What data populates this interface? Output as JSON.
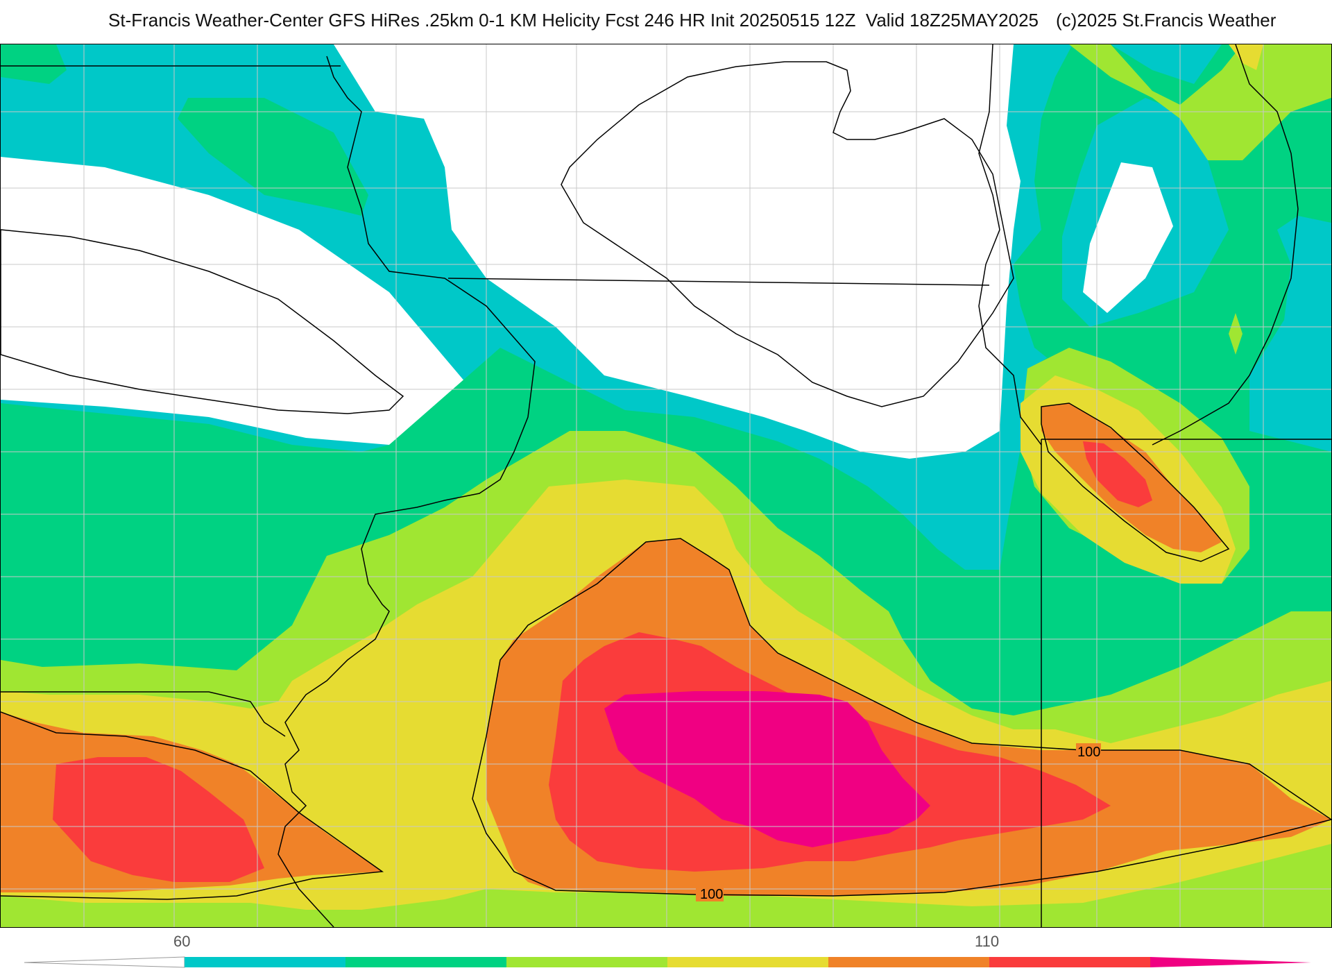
{
  "header": {
    "left_title": "St-Francis Weather-Center GFS HiRes .25km 0-1 KM Helicity Fcst 246 HR Init 20250515 12Z  Valid 18Z25MAY2025",
    "right_title": "(c)2025 St.Francis Weather"
  },
  "map": {
    "contour_labels": [
      "100",
      "100"
    ]
  },
  "legend": {
    "tick_labels": [
      "60",
      "110"
    ],
    "colors": [
      "#ffffff",
      "#00c8c8",
      "#00d282",
      "#a0e632",
      "#e6dc32",
      "#f08228",
      "#fa3c3c",
      "#f00082"
    ]
  }
}
